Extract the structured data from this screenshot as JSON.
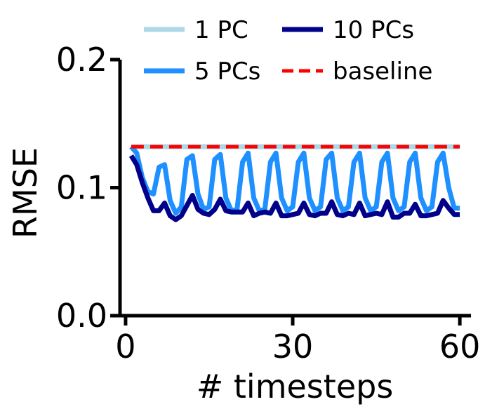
{
  "chart_data": {
    "type": "line",
    "title": "",
    "xlabel": "# timesteps",
    "ylabel": "RMSE",
    "xlim": [
      -1,
      62
    ],
    "ylim": [
      0.0,
      0.2
    ],
    "xticks": [
      0,
      30,
      60
    ],
    "xtick_labels": [
      "0",
      "30",
      "60"
    ],
    "yticks": [
      0.0,
      0.1,
      0.2
    ],
    "ytick_labels": [
      "0.0",
      "0.1",
      "0.2"
    ],
    "grid": false,
    "legend_position": "top",
    "x": [
      1,
      2,
      3,
      4,
      5,
      6,
      7,
      8,
      9,
      10,
      11,
      12,
      13,
      14,
      15,
      16,
      17,
      18,
      19,
      20,
      21,
      22,
      23,
      24,
      25,
      26,
      27,
      28,
      29,
      30,
      31,
      32,
      33,
      34,
      35,
      36,
      37,
      38,
      39,
      40,
      41,
      42,
      43,
      44,
      45,
      46,
      47,
      48,
      49,
      50,
      51,
      52,
      53,
      54,
      55,
      56,
      57,
      58,
      59,
      60
    ],
    "series": [
      {
        "name": "1 PC",
        "color": "#add8e6",
        "style": "solid",
        "values": [
          0.132,
          0.132,
          0.132,
          0.132,
          0.132,
          0.132,
          0.132,
          0.132,
          0.132,
          0.132,
          0.132,
          0.132,
          0.132,
          0.132,
          0.132,
          0.132,
          0.132,
          0.132,
          0.132,
          0.132,
          0.132,
          0.132,
          0.132,
          0.132,
          0.132,
          0.132,
          0.132,
          0.132,
          0.132,
          0.132,
          0.132,
          0.132,
          0.132,
          0.132,
          0.132,
          0.132,
          0.132,
          0.132,
          0.132,
          0.132,
          0.132,
          0.132,
          0.132,
          0.132,
          0.132,
          0.132,
          0.132,
          0.132,
          0.132,
          0.132,
          0.132,
          0.132,
          0.132,
          0.132,
          0.132,
          0.132,
          0.132,
          0.132,
          0.132,
          0.132
        ]
      },
      {
        "name": "5 PCs",
        "color": "#1e90ff",
        "style": "solid",
        "values": [
          0.132,
          0.127,
          0.108,
          0.097,
          0.095,
          0.116,
          0.118,
          0.09,
          0.08,
          0.085,
          0.122,
          0.125,
          0.095,
          0.083,
          0.085,
          0.122,
          0.126,
          0.092,
          0.082,
          0.083,
          0.12,
          0.127,
          0.092,
          0.082,
          0.083,
          0.12,
          0.127,
          0.092,
          0.082,
          0.085,
          0.12,
          0.127,
          0.092,
          0.082,
          0.085,
          0.122,
          0.127,
          0.092,
          0.082,
          0.085,
          0.12,
          0.127,
          0.092,
          0.082,
          0.085,
          0.12,
          0.127,
          0.092,
          0.082,
          0.085,
          0.12,
          0.127,
          0.092,
          0.082,
          0.085,
          0.12,
          0.127,
          0.1,
          0.084,
          0.084
        ]
      },
      {
        "name": "10 PCs",
        "color": "#00008b",
        "style": "solid",
        "values": [
          0.125,
          0.118,
          0.104,
          0.092,
          0.082,
          0.082,
          0.088,
          0.078,
          0.075,
          0.078,
          0.086,
          0.094,
          0.083,
          0.08,
          0.079,
          0.083,
          0.091,
          0.082,
          0.081,
          0.081,
          0.081,
          0.088,
          0.078,
          0.08,
          0.081,
          0.08,
          0.088,
          0.078,
          0.078,
          0.079,
          0.08,
          0.088,
          0.079,
          0.078,
          0.08,
          0.08,
          0.089,
          0.079,
          0.078,
          0.08,
          0.079,
          0.088,
          0.078,
          0.079,
          0.08,
          0.079,
          0.089,
          0.077,
          0.077,
          0.08,
          0.08,
          0.087,
          0.078,
          0.078,
          0.079,
          0.08,
          0.09,
          0.084,
          0.079,
          0.079
        ]
      },
      {
        "name": "baseline",
        "color": "#ff0000",
        "style": "dashed",
        "values": [
          0.132,
          0.132,
          0.132,
          0.132,
          0.132,
          0.132,
          0.132,
          0.132,
          0.132,
          0.132,
          0.132,
          0.132,
          0.132,
          0.132,
          0.132,
          0.132,
          0.132,
          0.132,
          0.132,
          0.132,
          0.132,
          0.132,
          0.132,
          0.132,
          0.132,
          0.132,
          0.132,
          0.132,
          0.132,
          0.132,
          0.132,
          0.132,
          0.132,
          0.132,
          0.132,
          0.132,
          0.132,
          0.132,
          0.132,
          0.132,
          0.132,
          0.132,
          0.132,
          0.132,
          0.132,
          0.132,
          0.132,
          0.132,
          0.132,
          0.132,
          0.132,
          0.132,
          0.132,
          0.132,
          0.132,
          0.132,
          0.132,
          0.132,
          0.132,
          0.132
        ]
      }
    ]
  }
}
